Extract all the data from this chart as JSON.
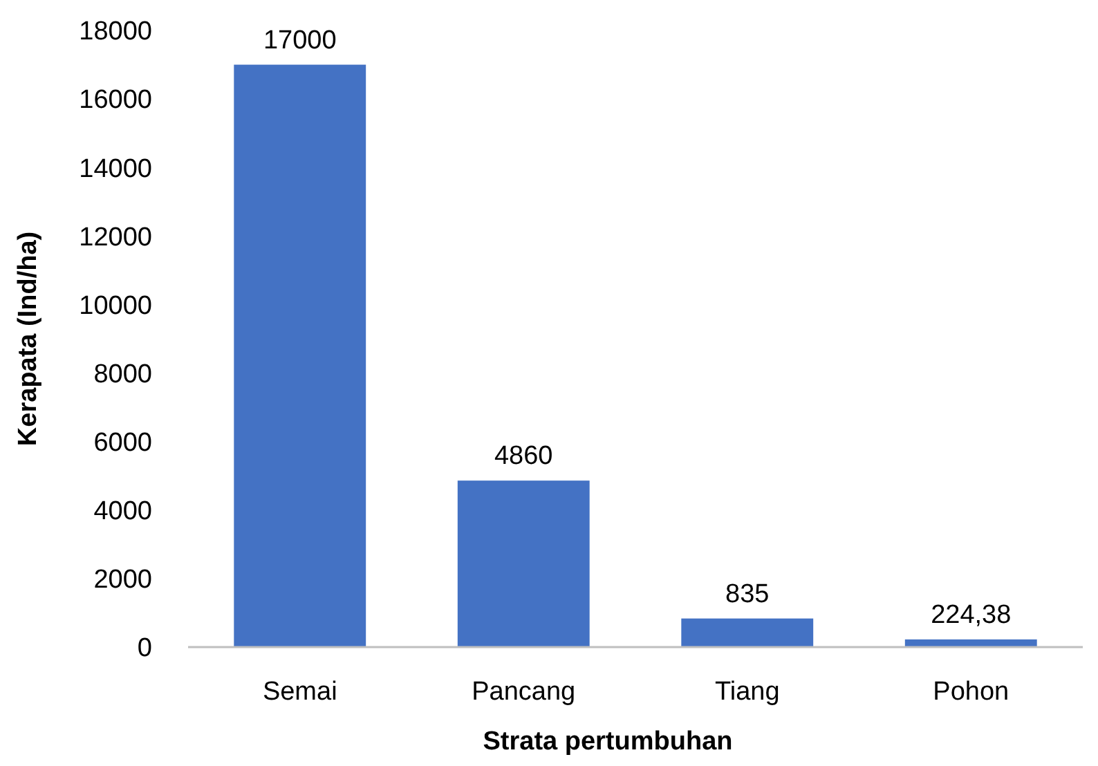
{
  "chart_data": {
    "type": "bar",
    "xlabel": "Strata pertumbuhan",
    "ylabel": "Kerapata (Ind/ha)",
    "categories": [
      "Semai",
      "Pancang",
      "Tiang",
      "Pohon"
    ],
    "values": [
      17000,
      4860,
      835,
      224.38
    ],
    "value_labels": [
      "17000",
      "4860",
      "835",
      "224,38"
    ],
    "color": "#4472c4",
    "ylim": [
      0,
      18000
    ],
    "yticks": [
      0,
      2000,
      4000,
      6000,
      8000,
      10000,
      12000,
      14000,
      16000,
      18000
    ],
    "grid": false
  }
}
